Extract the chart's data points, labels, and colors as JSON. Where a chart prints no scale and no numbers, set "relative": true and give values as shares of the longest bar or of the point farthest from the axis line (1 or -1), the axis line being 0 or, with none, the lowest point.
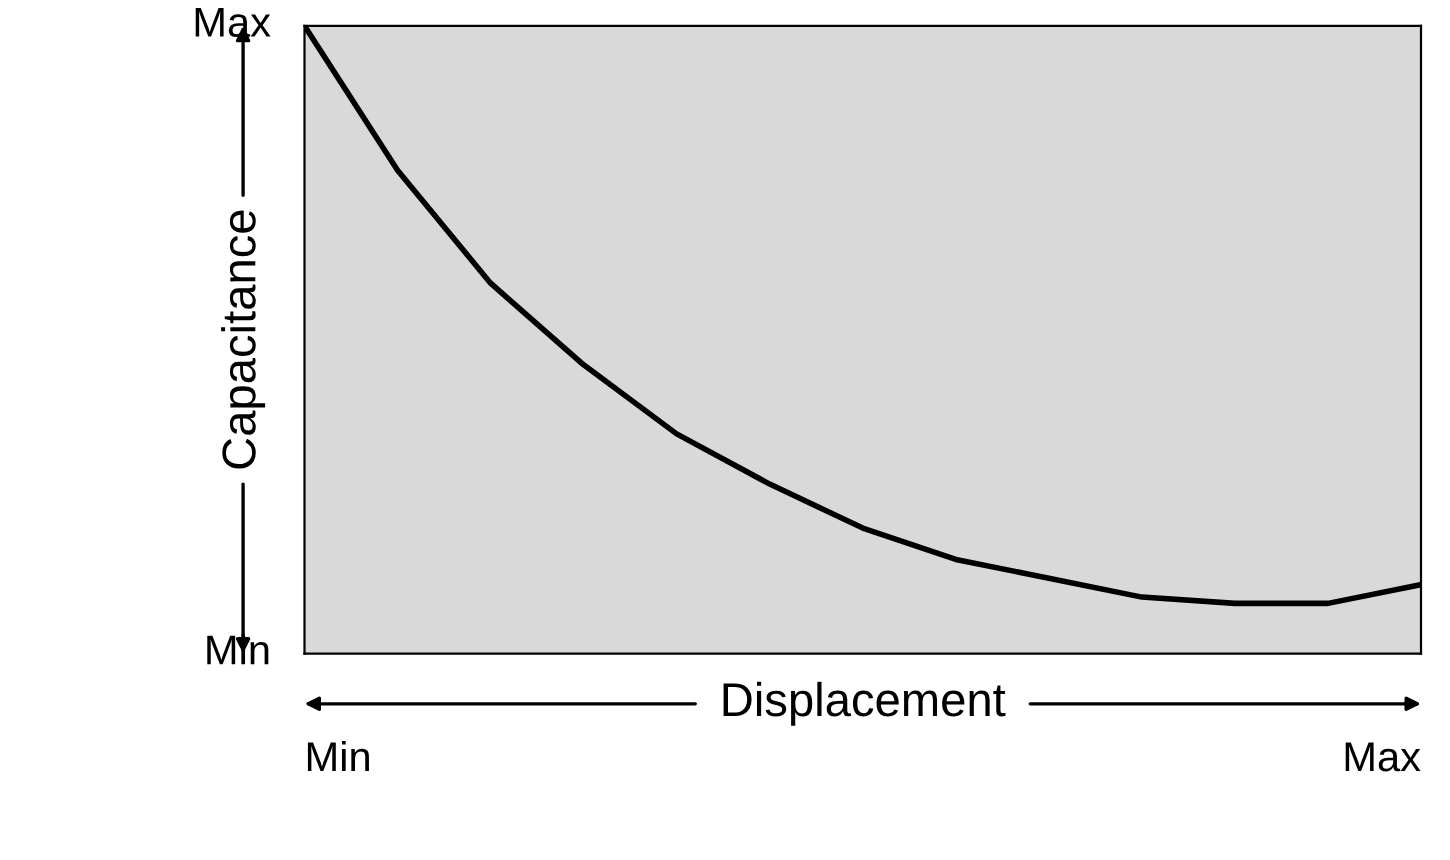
{
  "chart_data": {
    "type": "line",
    "xlabel": "Displacement",
    "ylabel": "Capacitance",
    "relative": true,
    "categories": [
      null,
      null,
      null,
      null,
      null,
      null,
      null,
      null,
      null,
      null,
      null,
      null,
      null
    ],
    "series": [
      {
        "color": "#000000",
        "values": [
          1.0,
          0.77,
          0.59,
          0.46,
          0.35,
          0.27,
          0.2,
          0.15,
          0.12,
          0.09,
          0.08,
          0.08,
          0.11
        ]
      }
    ],
    "annotations": [
      "Max",
      "Min",
      "Min",
      "Max"
    ],
    "marker": "none",
    "line_style": "solid"
  }
}
